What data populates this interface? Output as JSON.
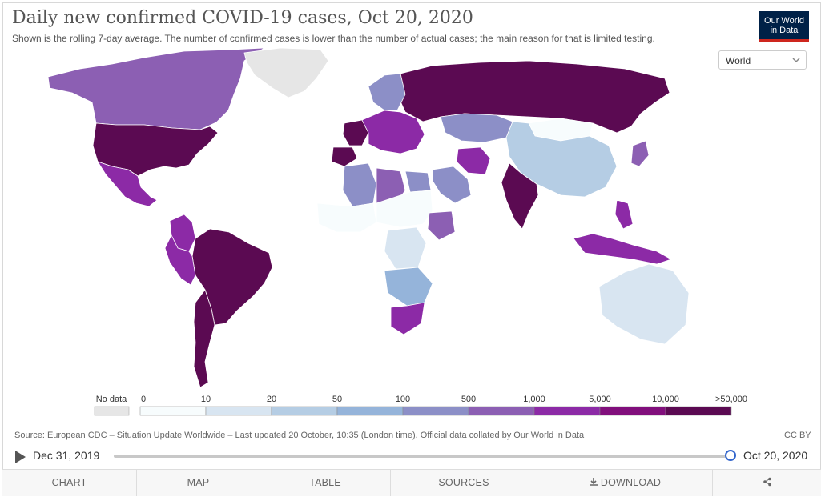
{
  "header": {
    "title": "Daily new confirmed COVID-19 cases, Oct 20, 2020",
    "subtitle": "Shown is the rolling 7-day average. The number of confirmed cases is lower than the number of actual cases; the main reason for that is limited testing."
  },
  "logo": {
    "line1": "Our World",
    "line2": "in Data"
  },
  "region_select": {
    "value": "World"
  },
  "legend": {
    "no_data_label": "No data",
    "no_data_color": "#e6e6e6",
    "bins": [
      {
        "label": "0",
        "color": "#f7fcfd"
      },
      {
        "label": "10",
        "color": "#d8e5f1"
      },
      {
        "label": "20",
        "color": "#b5cde4"
      },
      {
        "label": "50",
        "color": "#95b4da"
      },
      {
        "label": "100",
        "color": "#8c8fc7"
      },
      {
        "label": "500",
        "color": "#8c5fb3"
      },
      {
        "label": "1,000",
        "color": "#8c2aa6"
      },
      {
        "label": "5,000",
        "color": "#810f7c"
      },
      {
        "label": "10,000",
        "color": "#5b0a52"
      }
    ],
    "last_label": ">50,000"
  },
  "countries": [
    {
      "name": "Canada",
      "bin": 5
    },
    {
      "name": "Greenland",
      "bin": -1
    },
    {
      "name": "United States",
      "bin": 8
    },
    {
      "name": "Mexico",
      "bin": 6
    },
    {
      "name": "Colombia",
      "bin": 6
    },
    {
      "name": "Brazil",
      "bin": 8
    },
    {
      "name": "Argentina",
      "bin": 8
    },
    {
      "name": "Peru",
      "bin": 6
    },
    {
      "name": "Russia",
      "bin": 8
    },
    {
      "name": "China",
      "bin": 2
    },
    {
      "name": "India",
      "bin": 8
    },
    {
      "name": "France",
      "bin": 8
    },
    {
      "name": "Spain",
      "bin": 8
    },
    {
      "name": "Iran",
      "bin": 6
    },
    {
      "name": "Saudi Arabia",
      "bin": 4
    },
    {
      "name": "Algeria",
      "bin": 4
    },
    {
      "name": "Libya",
      "bin": 5
    },
    {
      "name": "Egypt",
      "bin": 4
    },
    {
      "name": "Ethiopia",
      "bin": 5
    },
    {
      "name": "DR Congo",
      "bin": 1
    },
    {
      "name": "South Africa",
      "bin": 6
    },
    {
      "name": "Indonesia",
      "bin": 6
    },
    {
      "name": "Australia",
      "bin": 1
    },
    {
      "name": "Kazakhstan",
      "bin": 4
    },
    {
      "name": "Mongolia",
      "bin": 0
    },
    {
      "name": "Japan",
      "bin": 5
    },
    {
      "name": "Philippines",
      "bin": 6
    }
  ],
  "source": "Source: European CDC – Situation Update Worldwide – Last updated 20 October, 10:35 (London time), Official data collated by Our World in Data",
  "license": "CC BY",
  "timeline": {
    "start": "Dec 31, 2019",
    "end": "Oct 20, 2020",
    "position": 1.0
  },
  "tabs": [
    {
      "label": "CHART",
      "active": false
    },
    {
      "label": "MAP",
      "active": true
    },
    {
      "label": "TABLE",
      "active": false
    },
    {
      "label": "SOURCES",
      "active": false
    },
    {
      "label": "DOWNLOAD",
      "active": false
    },
    {
      "label": "",
      "active": false
    }
  ]
}
